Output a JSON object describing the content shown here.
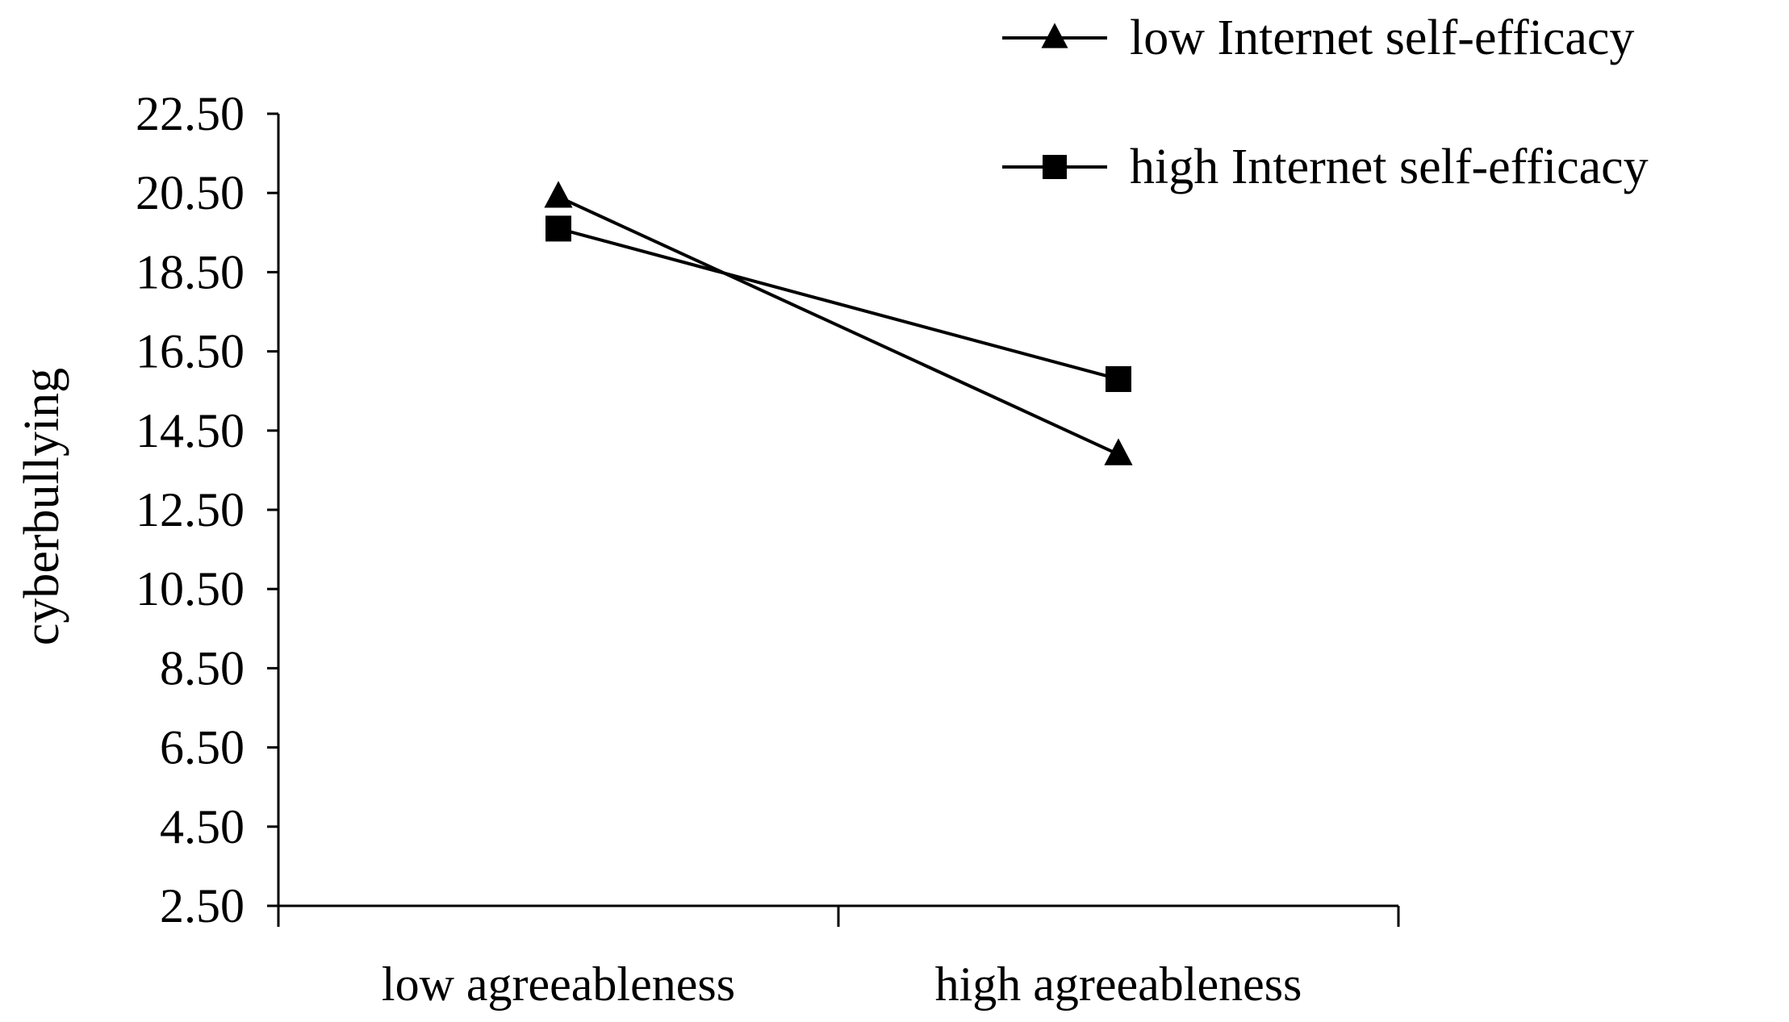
{
  "chart_data": {
    "type": "line",
    "title": "",
    "xlabel": "",
    "ylabel": "cyberbullying",
    "categories": [
      "low agreeableness",
      "high agreeableness"
    ],
    "yticks": [
      "22.50",
      "20.50",
      "18.50",
      "16.50",
      "14.50",
      "12.50",
      "10.50",
      "8.50",
      "6.50",
      "4.50",
      "2.50"
    ],
    "ylim": [
      2.5,
      22.5
    ],
    "grid": false,
    "legend_position": "top-right",
    "series": [
      {
        "name": "low Internet self-efficacy",
        "marker": "triangle",
        "values": [
          20.4,
          13.9
        ]
      },
      {
        "name": "high Internet self-efficacy",
        "marker": "square",
        "values": [
          19.6,
          15.8
        ]
      }
    ],
    "colors": {
      "line": "#000000",
      "axis": "#000000"
    }
  }
}
